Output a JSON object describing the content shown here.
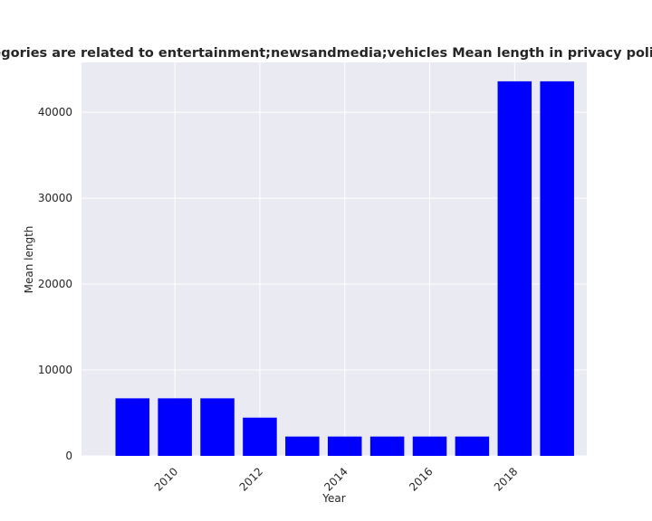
{
  "chart_data": {
    "type": "bar",
    "title": "categories are related to entertainment;newsandmedia;vehicles Mean length in privacy policies",
    "xlabel": "Year",
    "ylabel": "Mean length",
    "x": [
      2009,
      2010,
      2011,
      2012,
      2013,
      2014,
      2015,
      2016,
      2017,
      2018,
      2019
    ],
    "values": [
      6700,
      6700,
      6700,
      4450,
      2250,
      2250,
      2250,
      2250,
      2250,
      43600,
      43600
    ],
    "xlim": [
      2007.8,
      2019.7
    ],
    "ylim": [
      0,
      45800
    ],
    "xticks": [
      2010,
      2012,
      2014,
      2016,
      2018
    ],
    "yticks": [
      0,
      10000,
      20000,
      30000,
      40000
    ],
    "tick_rotation_x": 45,
    "grid": true,
    "bar_color": "#0000ff",
    "background_color": "#eaeaf2",
    "grid_color": "#ffffff"
  }
}
